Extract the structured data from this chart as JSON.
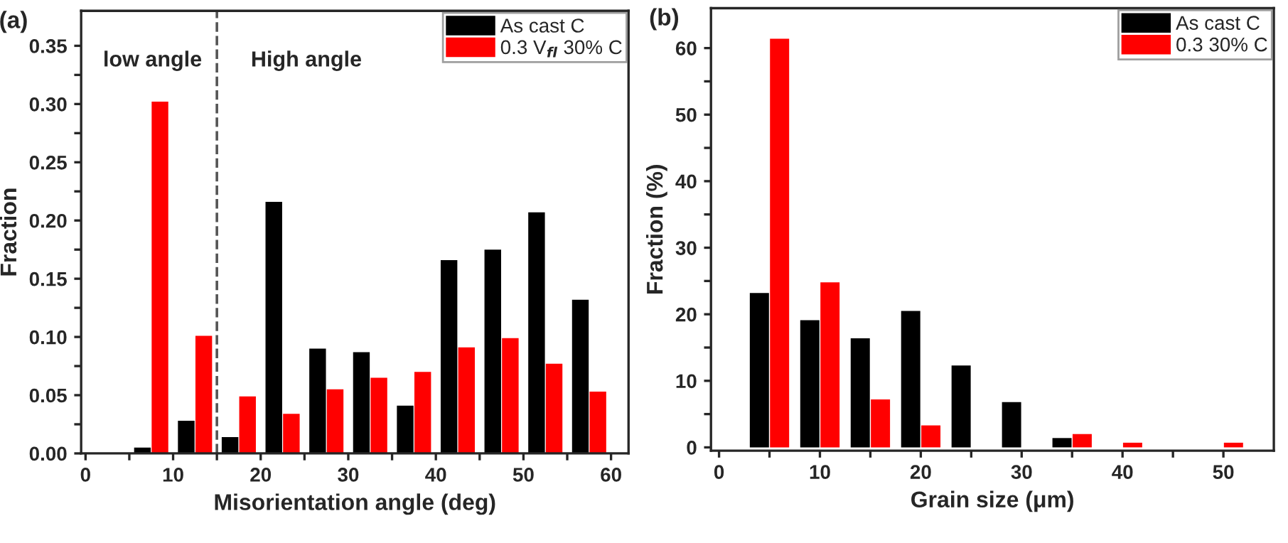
{
  "chart_data": [
    {
      "type": "bar",
      "xlabel": "Misorientation angle (deg)",
      "ylabel": "Fraction",
      "annotations": [
        "(a)",
        "low angle",
        "High angle"
      ],
      "series": [
        {
          "name": "As cast C",
          "color": "#000000",
          "x": [
            6.5,
            11.5,
            16.5,
            21.5,
            26.5,
            31.5,
            36.5,
            41.5,
            46.5,
            51.5,
            56.5
          ],
          "values": [
            0.005,
            0.028,
            0.014,
            0.216,
            0.09,
            0.087,
            0.041,
            0.166,
            0.175,
            0.207,
            0.132
          ]
        },
        {
          "name": "0.3 V$_{fl}$ 30% C",
          "color": "#ff0000",
          "x": [
            8.5,
            13.5,
            18.5,
            23.5,
            28.5,
            33.5,
            38.5,
            43.5,
            48.5,
            53.5,
            58.5
          ],
          "values": [
            0.302,
            0.101,
            0.049,
            0.034,
            0.055,
            0.065,
            0.07,
            0.091,
            0.099,
            0.077,
            0.053
          ]
        }
      ],
      "ref_lines": [
        {
          "axis": "x",
          "value": 15,
          "color": "#555555",
          "line_style": "dashed"
        }
      ],
      "xlim": [
        -0.5,
        62
      ],
      "ylim": [
        0,
        0.38
      ],
      "xticks": [
        0,
        {
          "value": 5,
          "label": null
        },
        10,
        {
          "value": 15,
          "label": null
        },
        20,
        {
          "value": 25,
          "label": null
        },
        30,
        {
          "value": 35,
          "label": null
        },
        40,
        {
          "value": 45,
          "label": null
        },
        50,
        {
          "value": 55,
          "label": null
        },
        60
      ],
      "yticks": [
        {
          "value": 0,
          "label": "0.00"
        },
        {
          "value": 0.025,
          "label": null
        },
        {
          "value": 0.05,
          "label": "0.05"
        },
        {
          "value": 0.075,
          "label": null
        },
        {
          "value": 0.1,
          "label": "0.10"
        },
        {
          "value": 0.125,
          "label": null
        },
        {
          "value": 0.15,
          "label": "0.15"
        },
        {
          "value": 0.175,
          "label": null
        },
        {
          "value": 0.2,
          "label": "0.20"
        },
        {
          "value": 0.225,
          "label": null
        },
        {
          "value": 0.25,
          "label": "0.25"
        },
        {
          "value": 0.275,
          "label": null
        },
        {
          "value": 0.3,
          "label": "0.30"
        },
        {
          "value": 0.325,
          "label": null
        },
        {
          "value": 0.35,
          "label": "0.35"
        }
      ],
      "legend": "top right",
      "grid": false
    },
    {
      "type": "bar",
      "xlabel": "Grain size (μm)",
      "ylabel": "Fraction (%)",
      "annotations": [
        "(b)"
      ],
      "series": [
        {
          "name": "As cast C",
          "color": "#000000",
          "x": [
            4,
            9,
            14,
            19,
            24,
            29,
            34
          ],
          "values": [
            23.2,
            19.1,
            16.4,
            20.5,
            12.3,
            6.8,
            1.4
          ]
        },
        {
          "name": "0.3 30% C",
          "color": "#ff0000",
          "x": [
            6,
            11,
            16,
            21,
            36,
            41,
            51
          ],
          "values": [
            61.4,
            24.8,
            7.2,
            3.3,
            2.0,
            0.7,
            0.7
          ]
        }
      ],
      "xlim": [
        -0.8,
        55
      ],
      "ylim": [
        -0.5,
        66
      ],
      "xticks": [
        0,
        {
          "value": 5,
          "label": null
        },
        10,
        {
          "value": 15,
          "label": null
        },
        20,
        {
          "value": 25,
          "label": null
        },
        30,
        {
          "value": 35,
          "label": null
        },
        40,
        {
          "value": 45,
          "label": null
        },
        50
      ],
      "yticks": [
        0,
        {
          "value": 5,
          "label": null
        },
        10,
        {
          "value": 15,
          "label": null
        },
        20,
        {
          "value": 25,
          "label": null
        },
        30,
        {
          "value": 35,
          "label": null
        },
        40,
        {
          "value": 45,
          "label": null
        },
        50,
        {
          "value": 55,
          "label": null
        },
        60
      ],
      "legend": "top right",
      "grid": false
    }
  ]
}
